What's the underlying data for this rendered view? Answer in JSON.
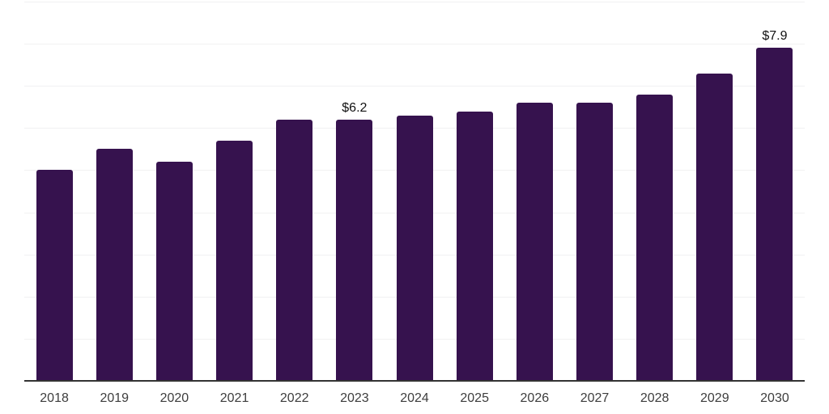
{
  "chart_data": {
    "type": "bar",
    "title": "",
    "xlabel": "",
    "ylabel": "",
    "categories": [
      "2018",
      "2019",
      "2020",
      "2021",
      "2022",
      "2023",
      "2024",
      "2025",
      "2026",
      "2027",
      "2028",
      "2029",
      "2030"
    ],
    "values": [
      5.0,
      5.5,
      5.2,
      5.7,
      6.2,
      6.2,
      6.3,
      6.4,
      6.6,
      6.6,
      6.8,
      7.3,
      7.9
    ],
    "value_labels": {
      "5": "$6.2",
      "12": "$7.9"
    },
    "ylim": [
      0,
      9
    ],
    "gridline_step": 1,
    "grid": true,
    "legend": false,
    "yaxis_ticks_visible": false,
    "colors": {
      "bar": "#36124E",
      "axis_line": "#333333",
      "gridline": "#f1f1f2",
      "tick_label": "#3d3d3d",
      "data_label": "#111111",
      "background": "#ffffff"
    }
  }
}
